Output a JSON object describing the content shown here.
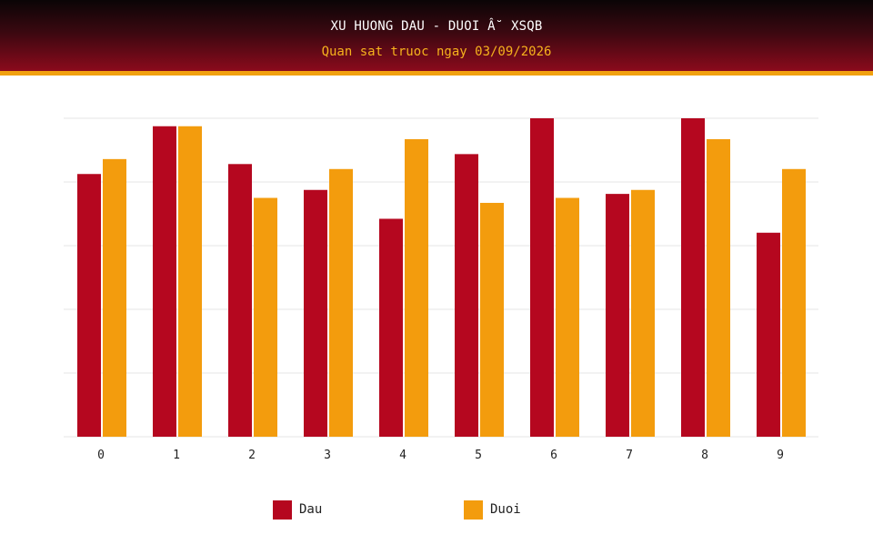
{
  "header": {
    "title": "XU HUONG DAU - DUOI Â˘ XSQB",
    "subtitle": "Quan sat truoc ngay 03/09/2026"
  },
  "colors": {
    "dau": "#b5071f",
    "duoi": "#f39c0d",
    "header_top": "#0a0506",
    "header_bottom": "#8b0a1c",
    "stripe": "#f1a10f",
    "grid": "#e6e6e6"
  },
  "chart_data": {
    "type": "bar",
    "categories": [
      "0",
      "1",
      "2",
      "3",
      "4",
      "5",
      "6",
      "7",
      "8",
      "9"
    ],
    "series": [
      {
        "name": "Dau",
        "values": [
          26.4,
          31.2,
          27.4,
          24.8,
          21.9,
          28.4,
          32.0,
          24.4,
          32.0,
          20.5
        ]
      },
      {
        "name": "Duoi",
        "values": [
          27.9,
          31.2,
          24.0,
          26.9,
          29.9,
          23.5,
          24.0,
          24.8,
          29.9,
          26.9
        ]
      }
    ],
    "title": "XU HUONG DAU - DUOI Â˘ XSQB",
    "subtitle": "Quan sat truoc ngay 03/09/2026",
    "xlabel": "",
    "ylabel": "",
    "ylim": [
      0,
      32
    ],
    "grid": true,
    "legend": "bottom-center"
  }
}
